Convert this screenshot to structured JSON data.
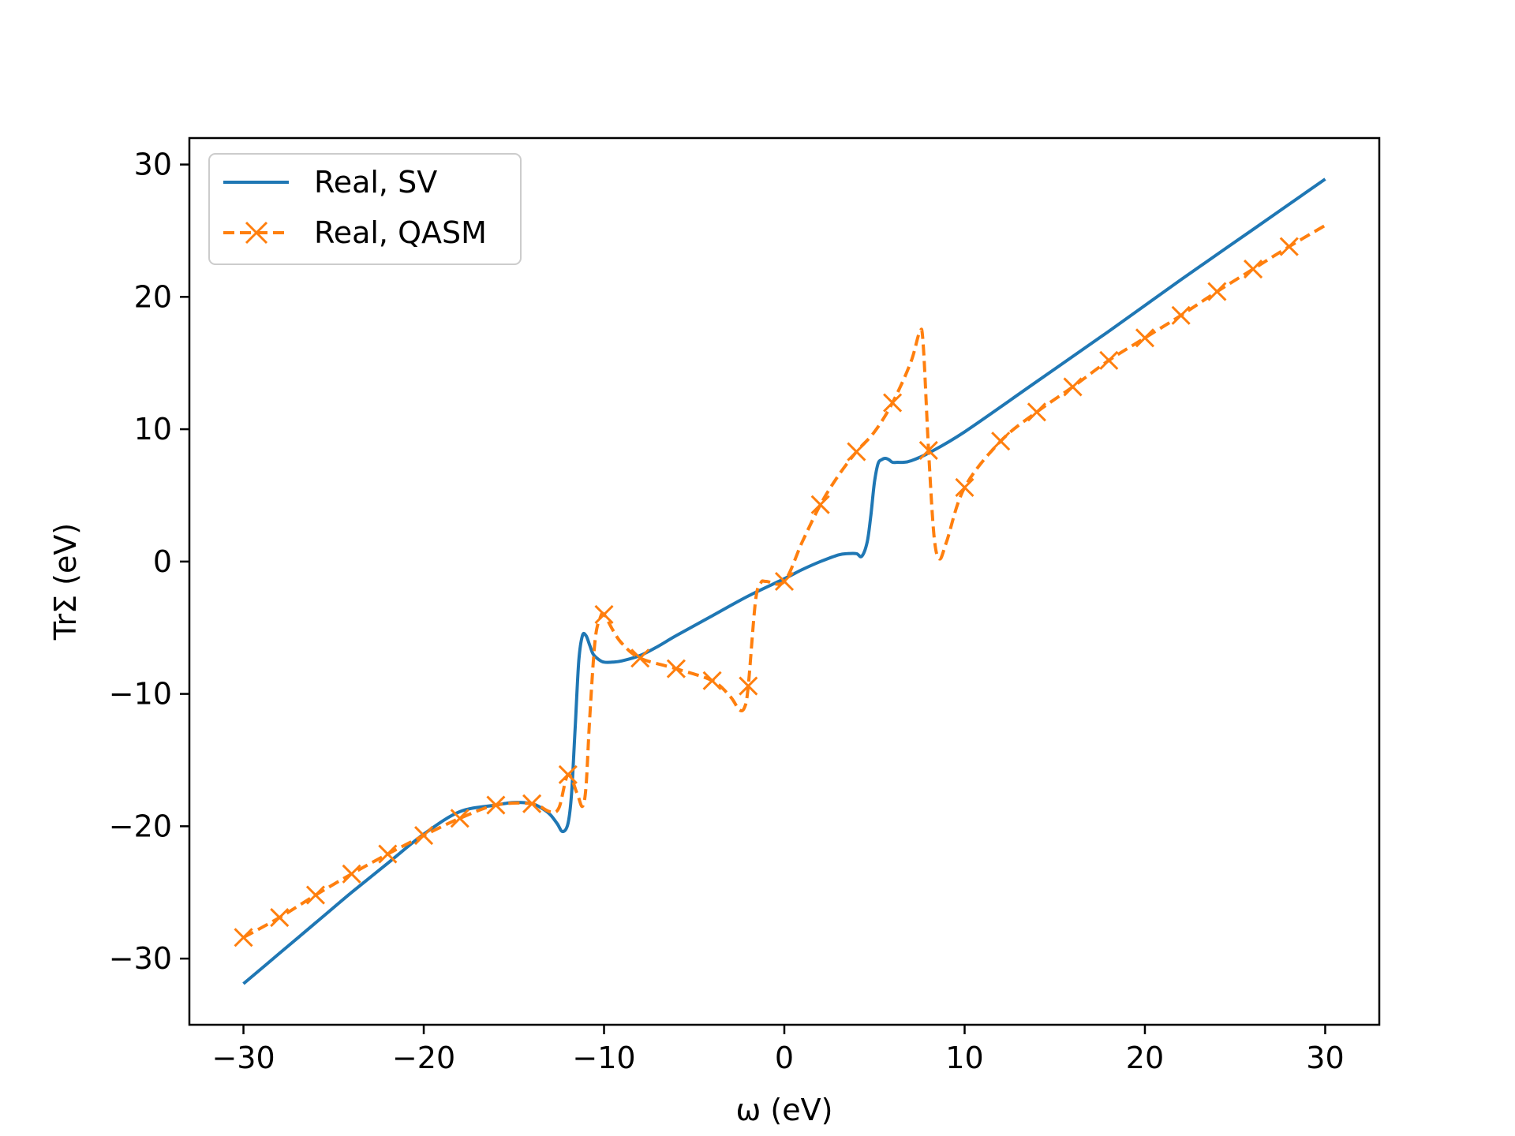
{
  "chart_data": {
    "type": "line",
    "title": "",
    "xlabel": "ω (eV)",
    "ylabel": "TrΣ (eV)",
    "xlim": [
      -33,
      33
    ],
    "ylim": [
      -35,
      32
    ],
    "xticks": [
      -30,
      -20,
      -10,
      0,
      10,
      20,
      30
    ],
    "yticks": [
      -30,
      -20,
      -10,
      0,
      10,
      20,
      30
    ],
    "xtick_labels": [
      "−30",
      "−20",
      "−10",
      "0",
      "10",
      "20",
      "30"
    ],
    "ytick_labels": [
      "−30",
      "−20",
      "−10",
      "0",
      "10",
      "20",
      "30"
    ],
    "grid": false,
    "legend_position": "top-left",
    "series": [
      {
        "name": "Real, SV",
        "color": "#1f77b4",
        "style": "solid",
        "marker": "none",
        "x": [
          -30,
          -28,
          -26,
          -24,
          -22,
          -20,
          -18,
          -16,
          -15,
          -14,
          -13.5,
          -13,
          -12.6,
          -12.3,
          -12.0,
          -11.8,
          -11.6,
          -11.4,
          -11.2,
          -11.0,
          -10.8,
          -10.6,
          -10.3,
          -10.0,
          -9.5,
          -9.0,
          -8.0,
          -7.0,
          -6.0,
          -4.0,
          -2.0,
          0.0,
          1.0,
          2.0,
          3.0,
          3.5,
          4.0,
          4.3,
          4.6,
          4.8,
          5.0,
          5.2,
          5.4,
          5.6,
          5.8,
          6.0,
          6.3,
          6.6,
          7.0,
          8.0,
          10.0,
          14.0,
          18.0,
          22.0,
          26.0,
          30.0
        ],
        "y": [
          -31.9,
          -29.6,
          -27.3,
          -25.0,
          -22.8,
          -20.6,
          -18.9,
          -18.4,
          -18.2,
          -18.3,
          -18.6,
          -19.1,
          -19.8,
          -20.4,
          -19.8,
          -17.5,
          -12.5,
          -7.5,
          -5.6,
          -5.6,
          -6.3,
          -7.0,
          -7.4,
          -7.6,
          -7.6,
          -7.5,
          -7.1,
          -6.4,
          -5.6,
          -4.1,
          -2.6,
          -1.3,
          -0.6,
          0.0,
          0.5,
          0.6,
          0.6,
          0.4,
          1.5,
          3.5,
          6.0,
          7.4,
          7.7,
          7.8,
          7.7,
          7.5,
          7.5,
          7.5,
          7.6,
          8.2,
          9.8,
          13.6,
          17.4,
          21.3,
          25.1,
          28.9
        ]
      },
      {
        "name": "Real, QASM",
        "color": "#ff7f0e",
        "style": "dashed",
        "marker": "x",
        "x": [
          -30,
          -28,
          -26,
          -24,
          -22,
          -20,
          -18,
          -16,
          -14,
          -13,
          -12.5,
          -12.0,
          -11.5,
          -11.2,
          -11.0,
          -10.8,
          -10.5,
          -10.2,
          -10.0,
          -9.5,
          -9.0,
          -8.0,
          -6.0,
          -4.0,
          -3.0,
          -2.5,
          -2.2,
          -2.0,
          -1.6,
          -1.3,
          -1.0,
          0.0,
          1.0,
          2.0,
          3.0,
          4.0,
          5.0,
          6.0,
          7.0,
          7.5,
          7.7,
          8.0,
          8.3,
          8.6,
          9.0,
          10.0,
          12.0,
          14.0,
          16.0,
          18.0,
          20.0,
          22.0,
          24.0,
          26.0,
          28.0,
          30.0
        ],
        "y": [
          -28.4,
          -26.9,
          -25.2,
          -23.6,
          -22.1,
          -20.7,
          -19.4,
          -18.4,
          -18.3,
          -18.9,
          -18.6,
          -16.1,
          -17.5,
          -18.5,
          -17.0,
          -12.0,
          -6.0,
          -4.2,
          -4.0,
          -5.2,
          -6.2,
          -7.3,
          -8.1,
          -9.0,
          -10.2,
          -11.2,
          -11.0,
          -9.4,
          -3.0,
          -1.6,
          -1.5,
          -1.5,
          1.5,
          4.3,
          6.5,
          8.3,
          9.8,
          12.0,
          15.0,
          17.3,
          16.5,
          8.4,
          2.0,
          0.2,
          1.5,
          5.6,
          9.1,
          11.3,
          13.2,
          15.2,
          16.9,
          18.6,
          20.4,
          22.1,
          23.8,
          25.4
        ],
        "marker_x": [
          -30,
          -28,
          -26,
          -24,
          -22,
          -20,
          -18,
          -16,
          -14,
          -12,
          -10,
          -8,
          -6,
          -4,
          -2,
          0,
          2,
          4,
          6,
          8,
          10,
          12,
          14,
          16,
          18,
          20,
          22,
          24,
          26,
          28
        ],
        "marker_y": [
          -28.4,
          -26.9,
          -25.2,
          -23.6,
          -22.1,
          -20.7,
          -19.4,
          -18.4,
          -18.3,
          -16.1,
          -4.0,
          -7.3,
          -8.1,
          -9.0,
          -9.4,
          -1.5,
          4.3,
          8.3,
          12.0,
          8.4,
          5.6,
          9.1,
          11.3,
          13.2,
          15.2,
          16.9,
          18.6,
          20.4,
          22.1,
          23.8
        ]
      }
    ]
  }
}
